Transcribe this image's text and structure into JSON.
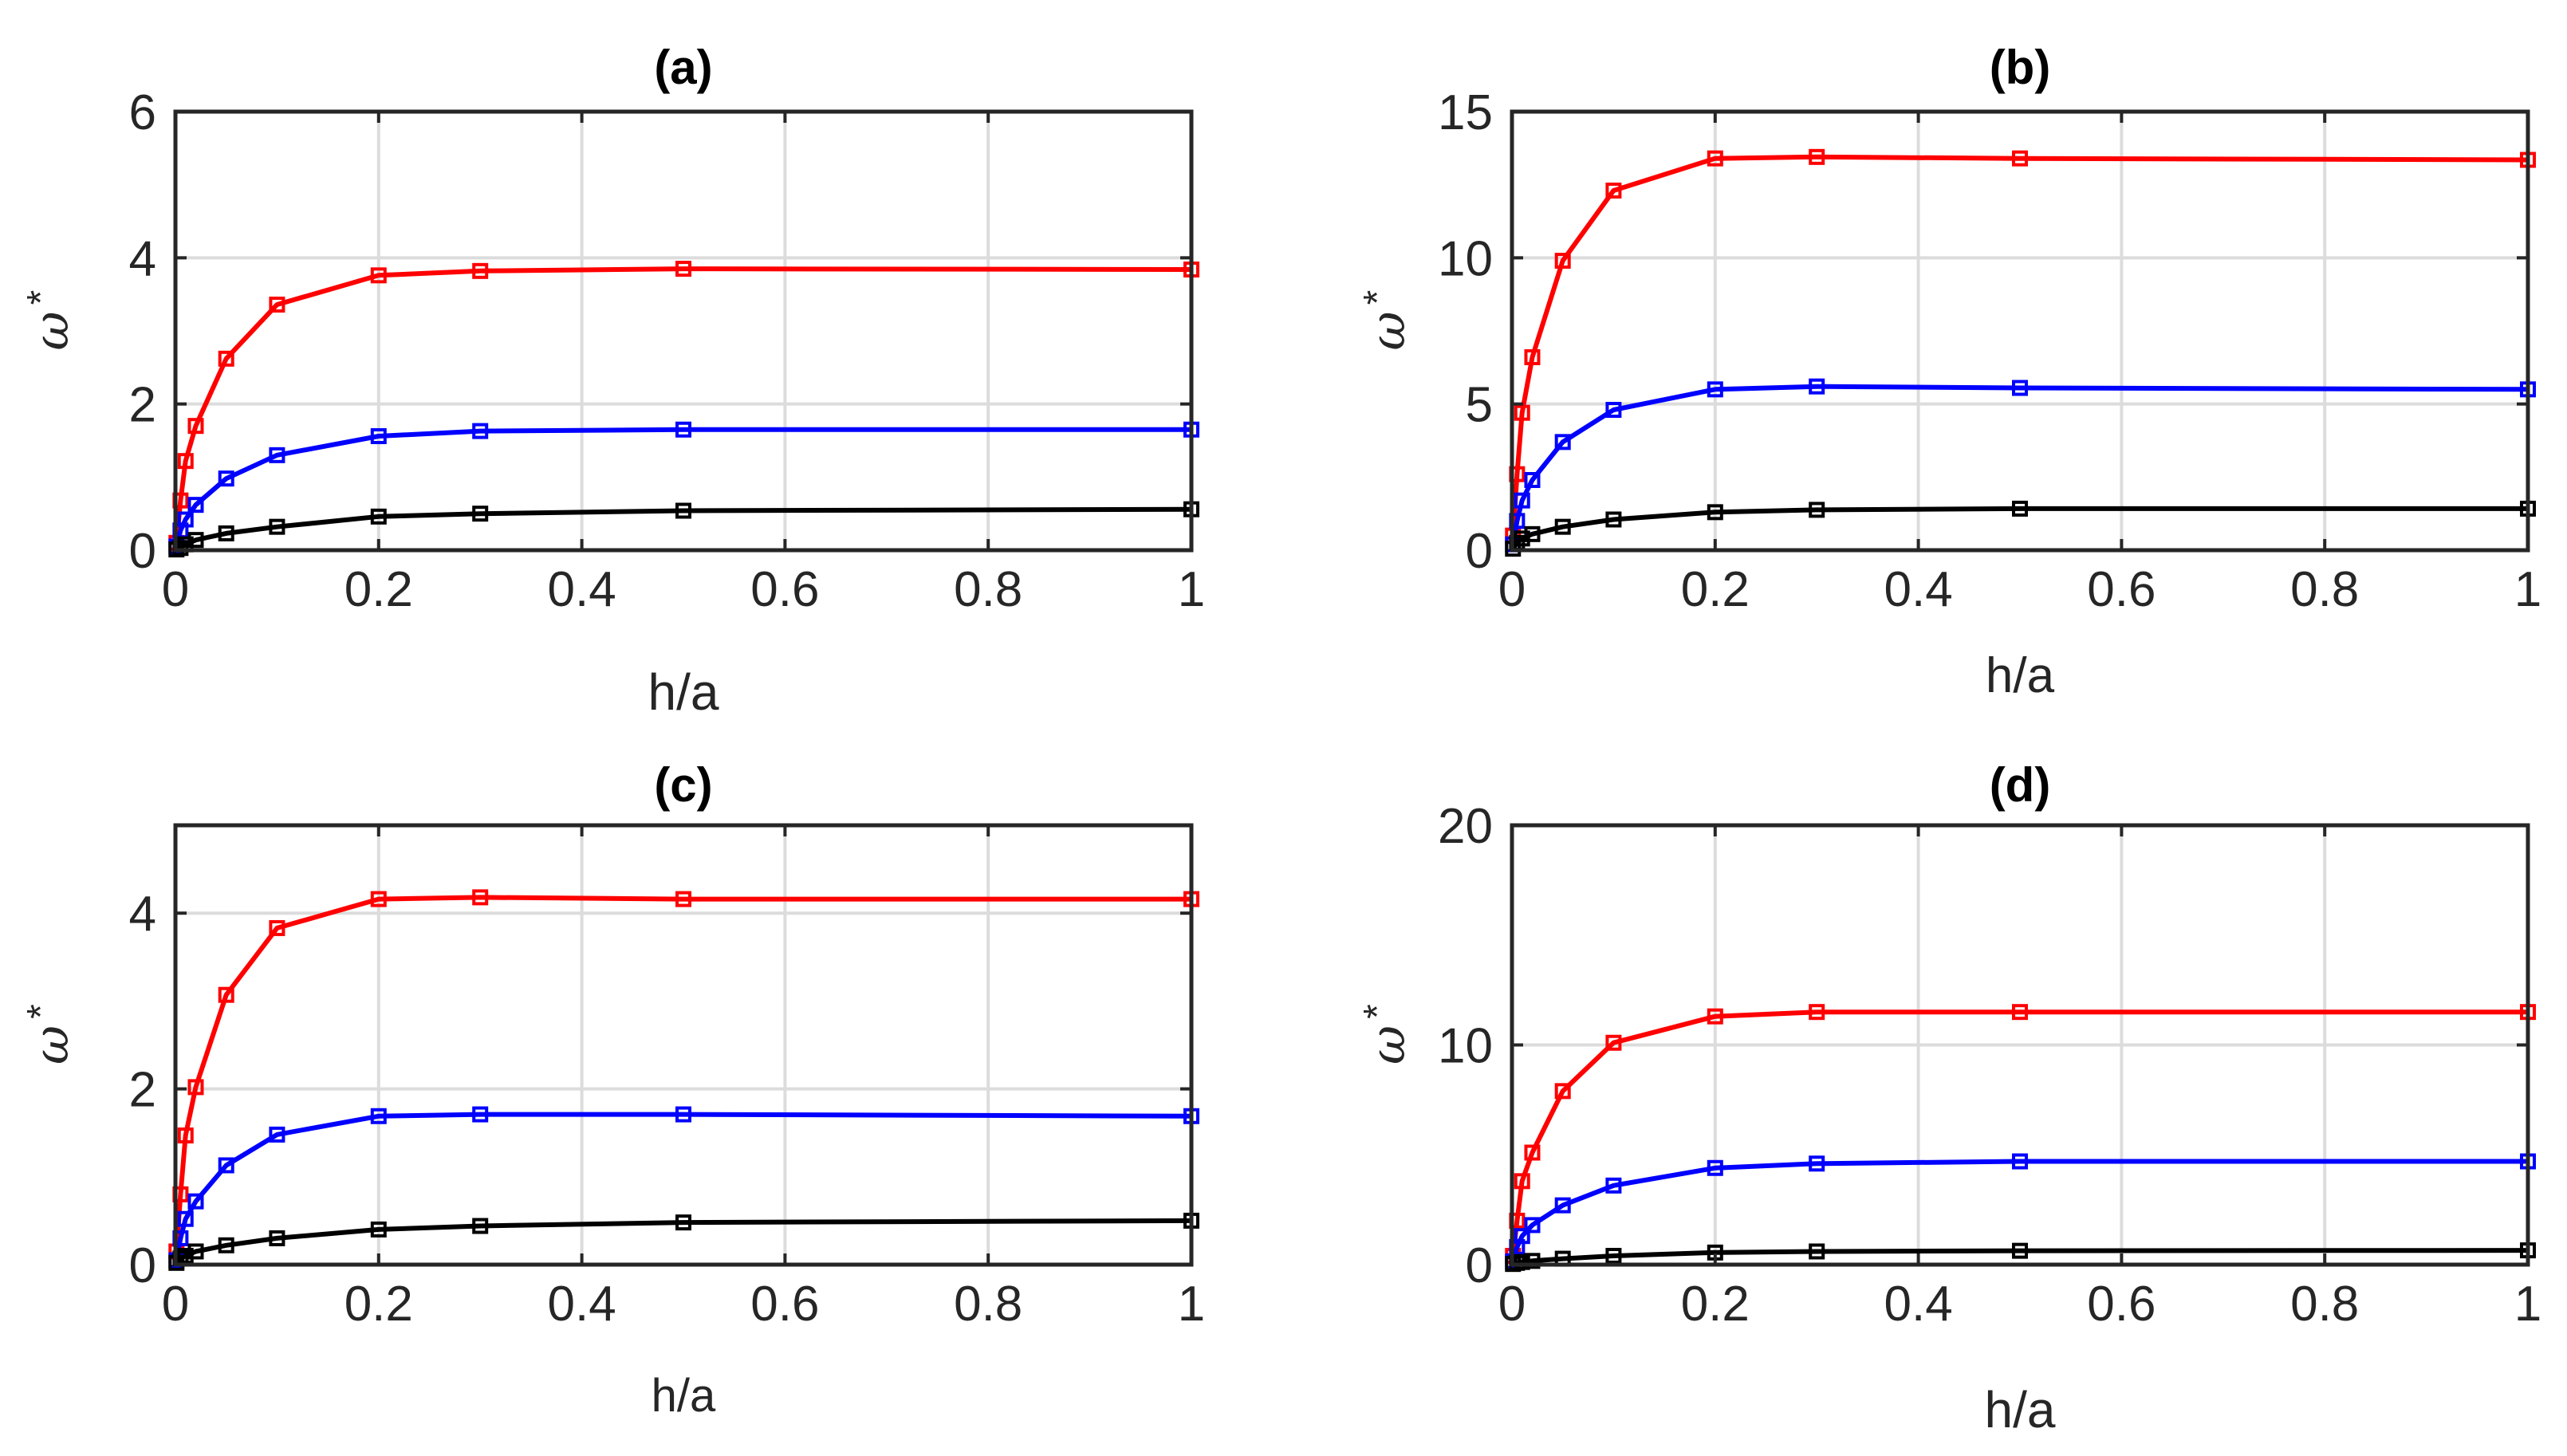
{
  "chart_data": [
    {
      "type": "line",
      "title": "(a)",
      "xlabel": "h/a",
      "ylabel": "ω",
      "ylabel_superscript": "*",
      "xlim": [
        0,
        1
      ],
      "ylim": [
        0,
        6
      ],
      "xticks": [
        0,
        0.2,
        0.4,
        0.6,
        0.8,
        1
      ],
      "xtick_labels": [
        "0",
        "0.2",
        "0.4",
        "0.6",
        "0.8",
        "1"
      ],
      "yticks": [
        0,
        2,
        4,
        6
      ],
      "ytick_labels": [
        "0",
        "2",
        "4",
        "6"
      ],
      "grid": true,
      "x": [
        0.001,
        0.005,
        0.01,
        0.02,
        0.05,
        0.1,
        0.2,
        0.3,
        0.5,
        1
      ],
      "series": [
        {
          "name": "red",
          "color": "#ff0000",
          "values": [
            0.1,
            0.68,
            1.22,
            1.7,
            2.62,
            3.36,
            3.76,
            3.82,
            3.85,
            3.84
          ]
        },
        {
          "name": "blue",
          "color": "#0000ff",
          "values": [
            0.05,
            0.27,
            0.42,
            0.62,
            0.98,
            1.3,
            1.56,
            1.63,
            1.65,
            1.65
          ]
        },
        {
          "name": "black",
          "color": "#000000",
          "values": [
            0.01,
            0.03,
            0.08,
            0.14,
            0.23,
            0.32,
            0.46,
            0.5,
            0.54,
            0.56
          ]
        }
      ]
    },
    {
      "type": "line",
      "title": "(b)",
      "xlabel": "h/a",
      "ylabel": "ω",
      "ylabel_superscript": "*",
      "xlim": [
        0,
        1
      ],
      "ylim": [
        0,
        15
      ],
      "xticks": [
        0,
        0.2,
        0.4,
        0.6,
        0.8,
        1
      ],
      "xtick_labels": [
        "0",
        "0.2",
        "0.4",
        "0.6",
        "0.8",
        "1"
      ],
      "yticks": [
        0,
        5,
        10,
        15
      ],
      "ytick_labels": [
        "0",
        "5",
        "10",
        "15"
      ],
      "grid": true,
      "x": [
        0.001,
        0.005,
        0.01,
        0.02,
        0.05,
        0.1,
        0.2,
        0.3,
        0.5,
        1
      ],
      "series": [
        {
          "name": "red",
          "color": "#ff0000",
          "values": [
            0.5,
            2.6,
            4.7,
            6.6,
            9.9,
            12.3,
            13.4,
            13.45,
            13.4,
            13.35
          ]
        },
        {
          "name": "blue",
          "color": "#0000ff",
          "values": [
            0.2,
            1.0,
            1.7,
            2.4,
            3.7,
            4.8,
            5.5,
            5.6,
            5.55,
            5.5
          ]
        },
        {
          "name": "black",
          "color": "#000000",
          "values": [
            0.05,
            0.25,
            0.4,
            0.55,
            0.8,
            1.05,
            1.3,
            1.38,
            1.42,
            1.42
          ]
        }
      ]
    },
    {
      "type": "line",
      "title": "(c)",
      "xlabel": "h/a",
      "ylabel": "ω",
      "ylabel_superscript": "*",
      "xlim": [
        0,
        1
      ],
      "ylim": [
        0,
        5
      ],
      "xticks": [
        0,
        0.2,
        0.4,
        0.6,
        0.8,
        1
      ],
      "xtick_labels": [
        "0",
        "0.2",
        "0.4",
        "0.6",
        "0.8",
        "1"
      ],
      "yticks": [
        0,
        2,
        4
      ],
      "ytick_labels": [
        "0",
        "2",
        "4"
      ],
      "grid": true,
      "x": [
        0.001,
        0.005,
        0.01,
        0.02,
        0.05,
        0.1,
        0.2,
        0.3,
        0.5,
        1
      ],
      "series": [
        {
          "name": "red",
          "color": "#ff0000",
          "values": [
            0.15,
            0.8,
            1.47,
            2.02,
            3.07,
            3.83,
            4.16,
            4.18,
            4.16,
            4.16
          ]
        },
        {
          "name": "blue",
          "color": "#0000ff",
          "values": [
            0.05,
            0.3,
            0.52,
            0.72,
            1.13,
            1.48,
            1.69,
            1.71,
            1.71,
            1.69
          ]
        },
        {
          "name": "black",
          "color": "#000000",
          "values": [
            0.02,
            0.07,
            0.1,
            0.15,
            0.22,
            0.3,
            0.4,
            0.44,
            0.48,
            0.5
          ]
        }
      ]
    },
    {
      "type": "line",
      "title": "(d)",
      "xlabel": "h/a",
      "ylabel": "ω",
      "ylabel_superscript": "*",
      "xlim": [
        0,
        1
      ],
      "ylim": [
        0,
        20
      ],
      "xticks": [
        0,
        0.2,
        0.4,
        0.6,
        0.8,
        1
      ],
      "xtick_labels": [
        "0",
        "0.2",
        "0.4",
        "0.6",
        "0.8",
        "1"
      ],
      "yticks": [
        0,
        10,
        20
      ],
      "ytick_labels": [
        "0",
        "10",
        "20"
      ],
      "grid": true,
      "x": [
        0.001,
        0.005,
        0.01,
        0.02,
        0.05,
        0.1,
        0.2,
        0.3,
        0.5,
        1
      ],
      "series": [
        {
          "name": "red",
          "color": "#ff0000",
          "values": [
            0.4,
            2.0,
            3.8,
            5.1,
            7.9,
            10.1,
            11.3,
            11.5,
            11.5,
            11.5
          ]
        },
        {
          "name": "blue",
          "color": "#0000ff",
          "values": [
            0.15,
            0.8,
            1.3,
            1.8,
            2.7,
            3.6,
            4.4,
            4.6,
            4.7,
            4.7
          ]
        },
        {
          "name": "black",
          "color": "#000000",
          "values": [
            0.03,
            0.08,
            0.12,
            0.17,
            0.27,
            0.4,
            0.55,
            0.6,
            0.63,
            0.65
          ]
        }
      ]
    }
  ]
}
